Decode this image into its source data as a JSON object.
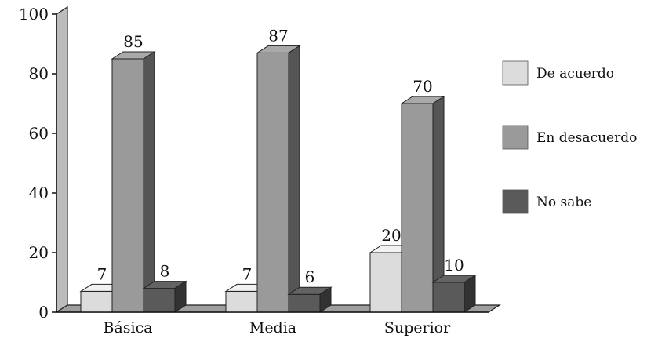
{
  "chart_data": {
    "type": "bar",
    "style": "3d-clustered-column",
    "categories": [
      "Básica",
      "Media",
      "Superior"
    ],
    "series": [
      {
        "name": "De acuerdo",
        "values": [
          7,
          7,
          20
        ],
        "color": "#dcdcdc"
      },
      {
        "name": "En desacuerdo",
        "values": [
          85,
          87,
          70
        ],
        "color": "#9a9a9a"
      },
      {
        "name": "No sabe",
        "values": [
          8,
          6,
          10
        ],
        "color": "#5a5a5a"
      }
    ],
    "yticks": [
      0,
      20,
      40,
      60,
      80,
      100
    ],
    "ylim": [
      0,
      100
    ],
    "title": "",
    "xlabel": "",
    "ylabel": "",
    "grid": false,
    "legend_position": "right",
    "data_labels": true
  }
}
